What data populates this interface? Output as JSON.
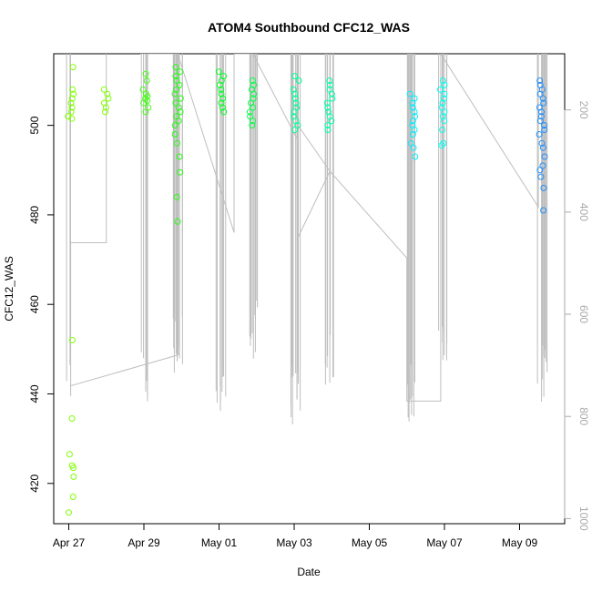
{
  "chart_data": {
    "type": "scatter",
    "title": "ATOM4 Southbound CFC12_WAS",
    "xlabel": "Date",
    "ylabel": "CFC12_WAS",
    "x_ticks": [
      "Apr 27",
      "Apr 29",
      "May 01",
      "May 03",
      "May 05",
      "May 07",
      "May 09"
    ],
    "y_ticks": [
      420,
      440,
      460,
      480,
      500
    ],
    "y2_ticks": [
      200,
      400,
      600,
      800,
      1000
    ],
    "y2_label": "",
    "xlim": [
      "Apr 26.6",
      "May 10.2"
    ],
    "ylim": [
      411,
      516
    ],
    "y2lim": [
      90,
      1010
    ],
    "y2_reversed": true,
    "grid": false,
    "legend": "none",
    "colors": {
      "Apr 27": "#7fff00",
      "Apr 28": "#7fff00",
      "Apr 29": "#44ff11",
      "Apr 30": "#22ff11",
      "May 01": "#00ff22",
      "May 02": "#00ff44",
      "May 03": "#00ff99",
      "May 04": "#00ffaa",
      "May 06": "#00eeff",
      "May 07": "#00ffee",
      "May 09": "#1e90ff",
      "pressure_line": "#bebebe"
    },
    "series": [
      {
        "date": "Apr 27",
        "x": 27.05,
        "values": [
          513,
          508,
          507,
          506,
          505,
          504,
          503,
          502,
          501.5,
          452,
          434.5,
          426.5,
          424,
          423.5,
          421.5,
          417,
          413.5
        ]
      },
      {
        "date": "Apr 28",
        "x": 28.0,
        "values": [
          508,
          507,
          506,
          505,
          504,
          503
        ]
      },
      {
        "date": "Apr 29",
        "x": 29.05,
        "values": [
          511.5,
          510,
          508,
          507,
          506.5,
          506,
          505.5,
          505,
          504,
          503
        ]
      },
      {
        "date": "Apr 30",
        "x": 29.9,
        "values": [
          513,
          512,
          511,
          510,
          509,
          508,
          507,
          506,
          505,
          504,
          503,
          502,
          501,
          500,
          498,
          496,
          493,
          489.5,
          484,
          478.5
        ]
      },
      {
        "date": "May 01",
        "x": 31.05,
        "values": [
          512,
          511,
          510,
          509,
          508,
          507,
          506,
          505,
          504,
          503
        ]
      },
      {
        "date": "May 02",
        "x": 31.9,
        "values": [
          510,
          509,
          508,
          507,
          506,
          505,
          504,
          503,
          502,
          501,
          500
        ]
      },
      {
        "date": "May 03",
        "x": 33.05,
        "values": [
          511,
          510,
          508,
          507,
          506,
          505,
          504,
          503,
          502,
          501,
          500,
          499
        ]
      },
      {
        "date": "May 04",
        "x": 33.95,
        "values": [
          510,
          509,
          508,
          507,
          506,
          505,
          504,
          503,
          502,
          501,
          500,
          499
        ]
      },
      {
        "date": "May 06",
        "x": 36.15,
        "values": [
          507,
          506,
          505,
          504,
          503,
          502,
          501,
          500,
          499,
          498,
          496,
          495,
          493
        ]
      },
      {
        "date": "May 07",
        "x": 36.95,
        "values": [
          510,
          509,
          508,
          507,
          506,
          505,
          504,
          503,
          502,
          501,
          499,
          496,
          495.5
        ]
      },
      {
        "date": "May 09",
        "x": 39.6,
        "values": [
          510,
          509,
          508,
          507,
          506,
          505,
          504,
          503,
          502,
          501,
          500,
          499,
          498,
          496,
          495,
          493,
          491,
          490,
          488.5,
          486,
          481
        ]
      }
    ]
  }
}
